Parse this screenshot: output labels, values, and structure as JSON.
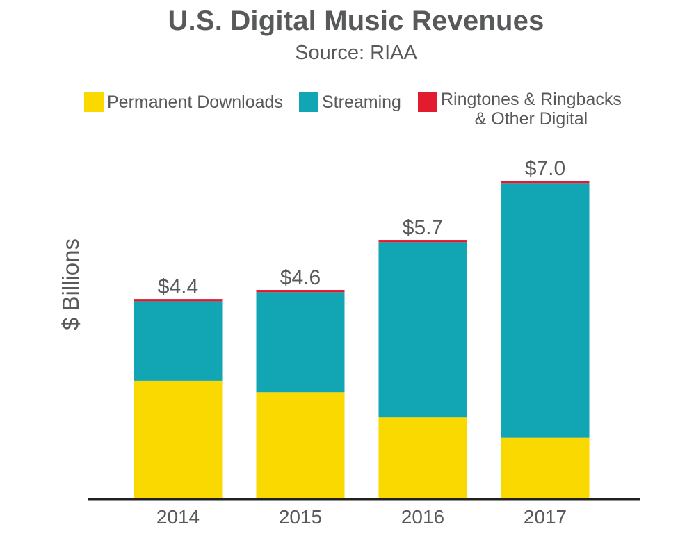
{
  "chart_data": {
    "type": "bar",
    "stacked": true,
    "title": "U.S. Digital Music Revenues",
    "subtitle": "Source: RIAA",
    "xlabel": "",
    "ylabel": "$ Billions",
    "categories": [
      "2014",
      "2015",
      "2016",
      "2017"
    ],
    "series": [
      {
        "name": "Permanent Downloads",
        "color": "#f9d900",
        "values": [
          2.6,
          2.35,
          1.8,
          1.35
        ]
      },
      {
        "name": "Streaming",
        "color": "#12a5b4",
        "values": [
          1.75,
          2.2,
          3.85,
          5.6
        ]
      },
      {
        "name": "Ringtones & Ringbacks\n& Other Digital",
        "color": "#e31b2f",
        "values": [
          0.05,
          0.05,
          0.05,
          0.05
        ]
      }
    ],
    "totals_labels": [
      "$4.4",
      "$4.6",
      "$5.7",
      "$7.0"
    ],
    "ylim": [
      0,
      7.0
    ],
    "grid": false,
    "legend_position": "top"
  }
}
